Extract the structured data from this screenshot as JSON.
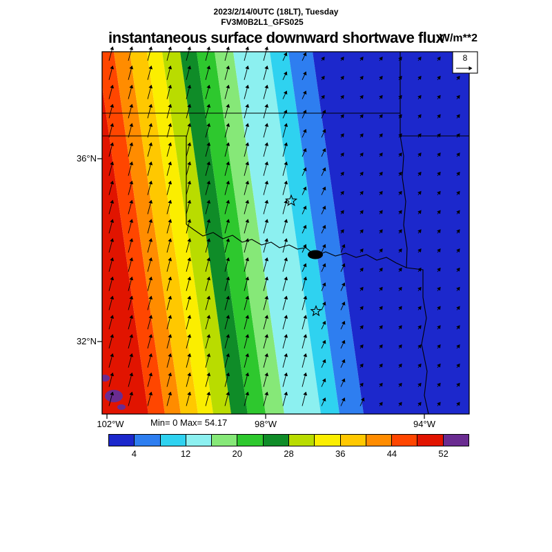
{
  "header": {
    "datetime_line": "2023/2/14/0UTC (18LT), Tuesday",
    "model_line": "FV3M0B2L1_GFS025"
  },
  "chart_data": {
    "type": "heatmap",
    "title": "instantaneous surface downward shortwave flux",
    "units": "W/m**2",
    "datetime": "2023/2/14/0UTC (18LT), Tuesday",
    "model": "FV3M0B2L1_GFS025",
    "stats_text": "Min= 0 Max= 54.17",
    "min": 0,
    "max": 54.17,
    "contour_interval": 4,
    "colorbar_ticks": [
      4,
      12,
      20,
      28,
      36,
      44,
      52
    ],
    "colorbar_colors": [
      "#1c28cc",
      "#2e7ef0",
      "#2fd2f0",
      "#8cf0f0",
      "#86e878",
      "#2ec82e",
      "#0f8c28",
      "#b9dc00",
      "#fbee00",
      "#ffc800",
      "#ff8c00",
      "#ff4600",
      "#e11400",
      "#6a2c91"
    ],
    "lat_ticks": [
      "36°N",
      "32°N"
    ],
    "lon_ticks": [
      "102°W",
      "98°W",
      "94°W"
    ],
    "vector_reference_label": "8",
    "wind_field": {
      "direction": "NNE, weak over low-flux (east) region",
      "reference_value": 8
    },
    "station_markers": [
      {
        "type": "star",
        "approx_lon": "97.4W",
        "approx_lat": "35.1N"
      },
      {
        "type": "star",
        "approx_lon": "96.7W",
        "approx_lat": "32.7N"
      }
    ],
    "bands": [
      {
        "color": "#e11400",
        "from": -60,
        "to": 178
      },
      {
        "color": "#ff4600",
        "from": 178,
        "to": 202
      },
      {
        "color": "#ff8c00",
        "from": 202,
        "to": 225
      },
      {
        "color": "#ffc800",
        "from": 225,
        "to": 250
      },
      {
        "color": "#fbee00",
        "from": 250,
        "to": 272
      },
      {
        "color": "#b9dc00",
        "from": 272,
        "to": 298
      },
      {
        "color": "#0f8c28",
        "from": 298,
        "to": 322
      },
      {
        "color": "#2ec82e",
        "from": 322,
        "to": 348
      },
      {
        "color": "#86e878",
        "from": 348,
        "to": 375
      },
      {
        "color": "#8cf0f0",
        "from": 375,
        "to": 428
      },
      {
        "color": "#2fd2f0",
        "from": 428,
        "to": 455
      },
      {
        "color": "#2e7ef0",
        "from": 455,
        "to": 490
      },
      {
        "color": "#1c28cc",
        "from": 490,
        "to": 760
      }
    ],
    "overflow_color": "#6a2c91"
  }
}
